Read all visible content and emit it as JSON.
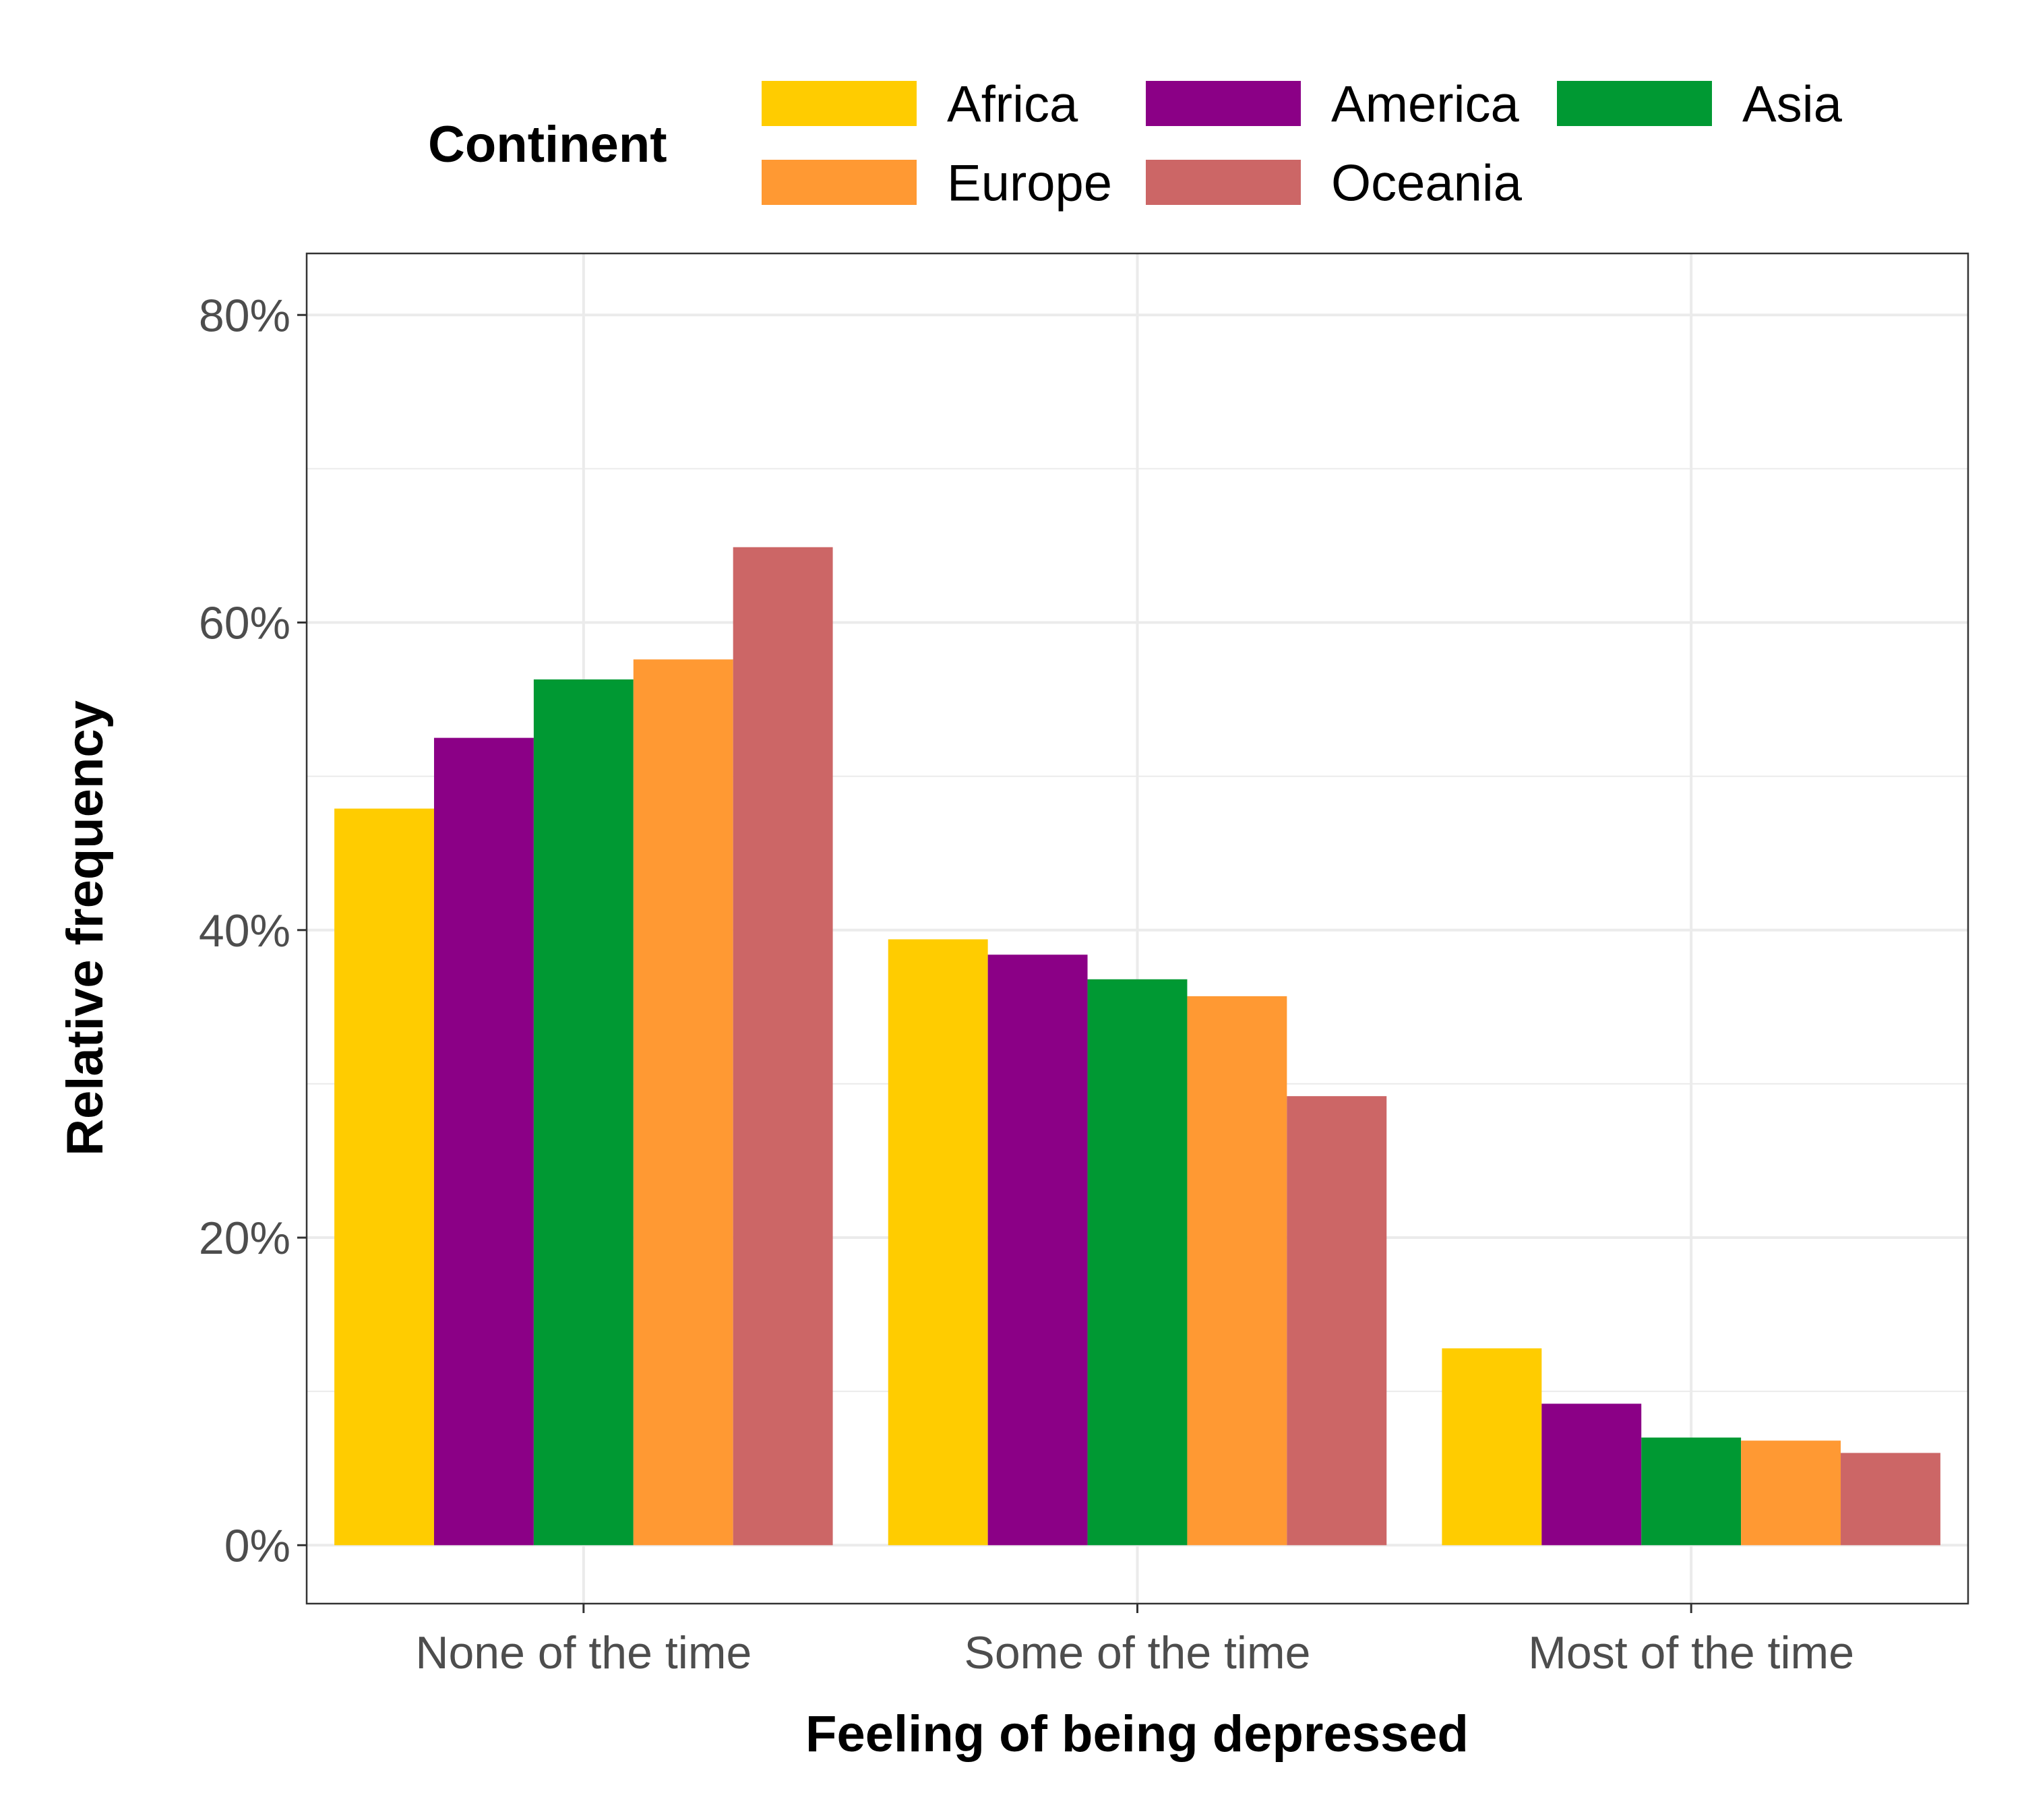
{
  "chart_data": {
    "type": "bar",
    "xlabel": "Feeling of being depressed",
    "ylabel": "Relative frequency",
    "ylim": [
      -3.8,
      84
    ],
    "y_ticks": [
      0,
      20,
      40,
      60,
      80
    ],
    "y_tick_labels": [
      "0%",
      "20%",
      "40%",
      "60%",
      "80%"
    ],
    "grid": true,
    "legend_title": "Continent",
    "legend_position": "top",
    "categories": [
      "None of the time",
      "Some of the time",
      "Most of the time"
    ],
    "series": [
      {
        "name": "Africa",
        "color": "#FFCC00",
        "values": [
          47.9,
          39.4,
          12.8
        ]
      },
      {
        "name": "America",
        "color": "#8B0086",
        "values": [
          52.5,
          38.4,
          9.2
        ]
      },
      {
        "name": "Asia",
        "color": "#009933",
        "values": [
          56.3,
          36.8,
          7.0
        ]
      },
      {
        "name": "Europe",
        "color": "#FF9933",
        "values": [
          57.6,
          35.7,
          6.8
        ]
      },
      {
        "name": "Oceania",
        "color": "#CC6666",
        "values": [
          64.9,
          29.2,
          6.0
        ]
      }
    ]
  }
}
